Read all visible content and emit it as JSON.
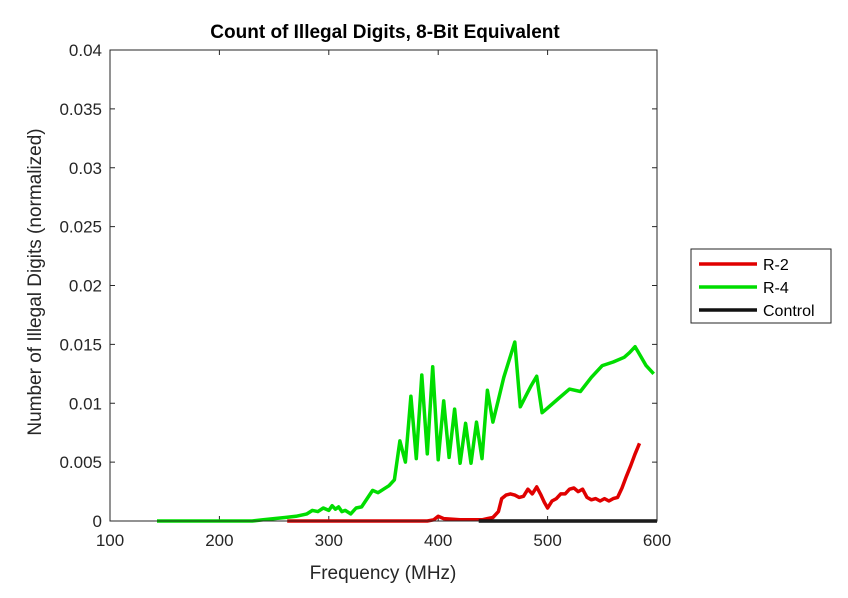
{
  "chart_data": {
    "type": "line",
    "title": "Count of Illegal Digits, 8-Bit Equivalent",
    "xlabel": "Frequency (MHz)",
    "ylabel": "Number of Illegal Digits (normalized)",
    "xlim": [
      100,
      600
    ],
    "ylim": [
      0,
      0.04
    ],
    "xticks": [
      100,
      200,
      300,
      400,
      500,
      600
    ],
    "xtick_labels": [
      "100",
      "200",
      "300",
      "400",
      "500",
      "600"
    ],
    "yticks": [
      0,
      0.005,
      0.01,
      0.015,
      0.02,
      0.025,
      0.03,
      0.035,
      0.04
    ],
    "ytick_labels": [
      "0",
      "0.005",
      "0.01",
      "0.015",
      "0.02",
      "0.025",
      "0.03",
      "0.035",
      "0.04"
    ],
    "grid": false,
    "legend_position": "outside-right",
    "series": [
      {
        "name": "R-2",
        "color": "#e00000",
        "x": [
          262,
          300,
          350,
          390,
          396,
          400,
          405,
          420,
          440,
          445,
          450,
          455,
          458,
          462,
          466,
          470,
          474,
          478,
          482,
          486,
          490,
          494,
          497,
          500,
          504,
          508,
          512,
          516,
          520,
          524,
          528,
          532,
          536,
          540,
          544,
          548,
          552,
          556,
          560,
          564,
          568,
          572,
          576,
          580,
          584
        ],
        "y": [
          0,
          0,
          0,
          0,
          0.0001,
          0.0004,
          0.0002,
          0.0001,
          0.0001,
          0.0002,
          0.0003,
          0.0008,
          0.0019,
          0.0022,
          0.0023,
          0.0022,
          0.002,
          0.0021,
          0.0027,
          0.0023,
          0.0029,
          0.0022,
          0.0016,
          0.0011,
          0.0017,
          0.0019,
          0.0023,
          0.0023,
          0.0027,
          0.0028,
          0.0025,
          0.0027,
          0.002,
          0.0018,
          0.0019,
          0.0017,
          0.0019,
          0.0017,
          0.0019,
          0.002,
          0.0028,
          0.0038,
          0.0047,
          0.0057,
          0.0066
        ]
      },
      {
        "name": "R-4",
        "color": "#00dd00",
        "x": [
          143,
          200,
          230,
          240,
          250,
          260,
          270,
          280,
          285,
          290,
          295,
          300,
          303,
          306,
          309,
          312,
          315,
          320,
          325,
          330,
          335,
          340,
          345,
          350,
          355,
          360,
          365,
          370,
          375,
          380,
          385,
          390,
          395,
          400,
          405,
          410,
          415,
          420,
          425,
          430,
          435,
          440,
          445,
          450,
          455,
          460,
          465,
          470,
          475,
          480,
          485,
          490,
          495,
          500,
          510,
          520,
          530,
          540,
          550,
          560,
          570,
          575,
          580,
          585,
          590,
          597
        ],
        "y": [
          0,
          0,
          0,
          0.0001,
          0.0002,
          0.0003,
          0.0004,
          0.0006,
          0.0009,
          0.0008,
          0.0011,
          0.0009,
          0.0013,
          0.001,
          0.0012,
          0.0008,
          0.0009,
          0.0006,
          0.0011,
          0.0012,
          0.0019,
          0.0026,
          0.0024,
          0.0027,
          0.003,
          0.0035,
          0.0068,
          0.005,
          0.0106,
          0.0053,
          0.0124,
          0.0057,
          0.0131,
          0.0052,
          0.0102,
          0.0054,
          0.0095,
          0.0049,
          0.0083,
          0.0049,
          0.0084,
          0.0053,
          0.0111,
          0.0084,
          0.0103,
          0.0122,
          0.0137,
          0.0152,
          0.0097,
          0.0106,
          0.0115,
          0.0123,
          0.0092,
          0.0096,
          0.0104,
          0.0112,
          0.011,
          0.0122,
          0.0132,
          0.0135,
          0.0139,
          0.0143,
          0.0148,
          0.014,
          0.0132,
          0.0125
        ]
      },
      {
        "name": "Control",
        "color": "#111111",
        "x": [
          437,
          600
        ],
        "y": [
          0,
          0
        ]
      }
    ]
  }
}
